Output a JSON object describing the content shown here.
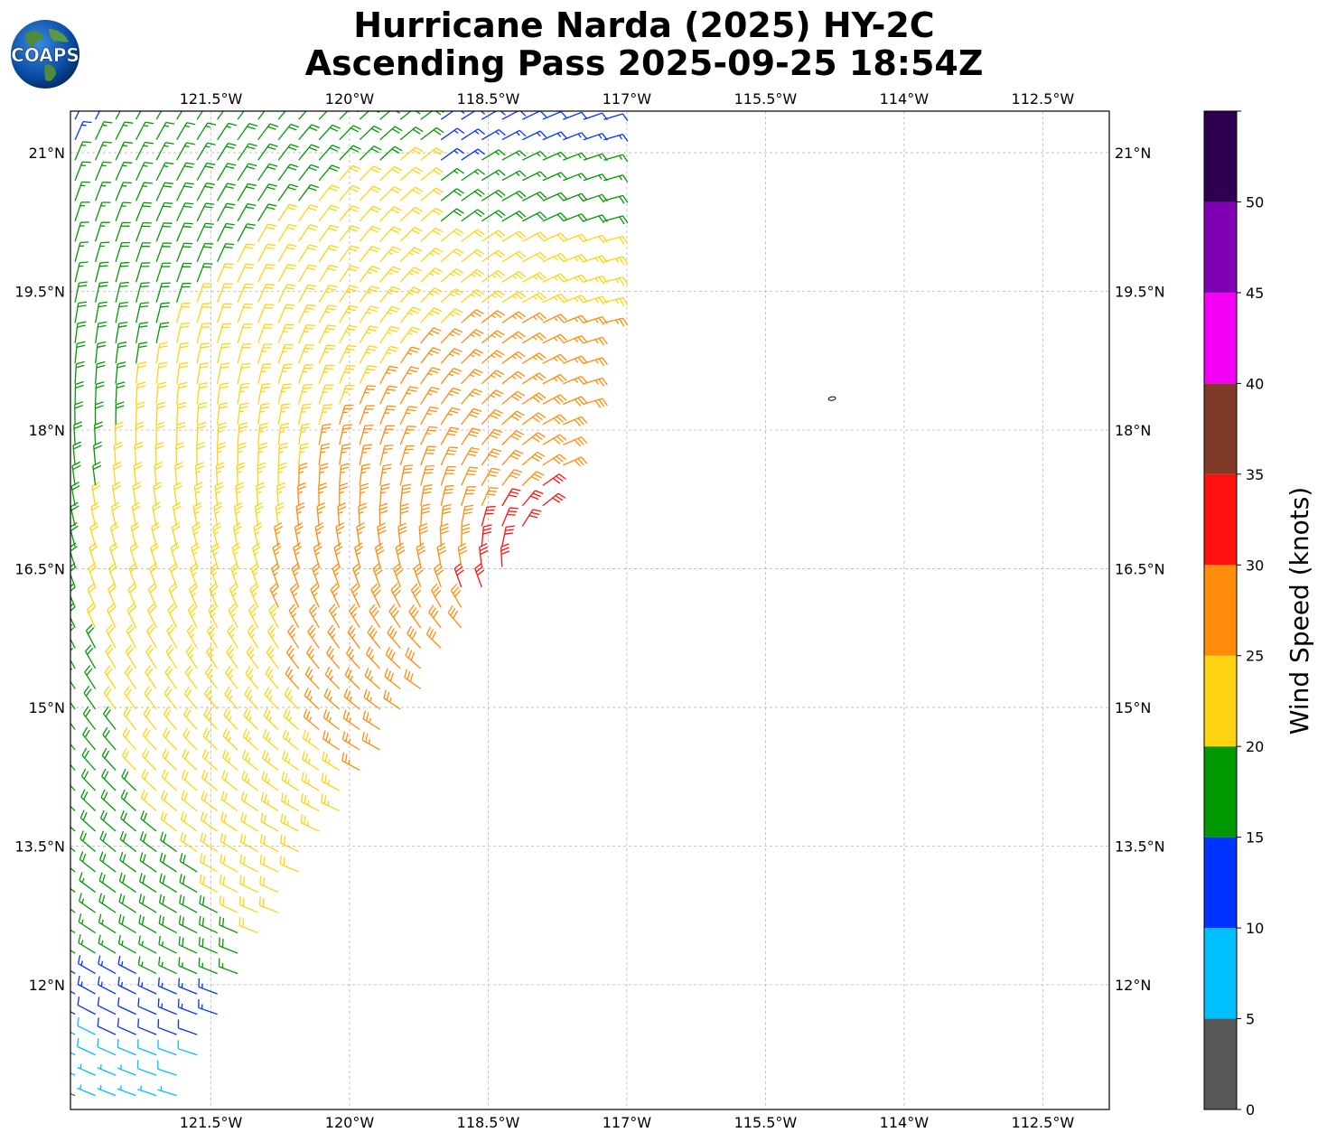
{
  "title": {
    "line1": "Hurricane Narda (2025) HY-2C",
    "line2": "Ascending Pass 2025-09-25 18:54Z"
  },
  "logo": {
    "text": "COAPS",
    "icon": "coaps-globe-icon"
  },
  "map": {
    "extent": {
      "lon_min": -123.02,
      "lon_max": -111.78,
      "lat_min": 10.65,
      "lat_max": 21.45
    },
    "grid": true,
    "x_ticks": [
      {
        "lon": -121.5,
        "label": "121.5°W"
      },
      {
        "lon": -120.0,
        "label": "120°W"
      },
      {
        "lon": -118.5,
        "label": "118.5°W"
      },
      {
        "lon": -117.0,
        "label": "117°W"
      },
      {
        "lon": -115.5,
        "label": "115.5°W"
      },
      {
        "lon": -114.0,
        "label": "114°W"
      },
      {
        "lon": -112.5,
        "label": "112.5°W"
      }
    ],
    "y_ticks": [
      {
        "lat": 21.0,
        "label": "21°N"
      },
      {
        "lat": 19.5,
        "label": "19.5°N"
      },
      {
        "lat": 18.0,
        "label": "18°N"
      },
      {
        "lat": 16.5,
        "label": "16.5°N"
      },
      {
        "lat": 15.0,
        "label": "15°N"
      },
      {
        "lat": 13.5,
        "label": "13.5°N"
      },
      {
        "lat": 12.0,
        "label": "12°N"
      }
    ],
    "island": {
      "lon": -114.78,
      "lat": 18.34
    },
    "swath_edge": [
      {
        "lon": -117.2,
        "lat": 20.7
      },
      {
        "lon": -117.2,
        "lat": 19.3
      },
      {
        "lon": -117.6,
        "lat": 17.6
      },
      {
        "lon": -118.5,
        "lat": 16.2
      },
      {
        "lon": -119.7,
        "lat": 14.4
      },
      {
        "lon": -120.7,
        "lat": 12.9
      },
      {
        "lon": -121.7,
        "lat": 11.0
      }
    ],
    "storm_center": {
      "lon": -117.6,
      "lat": 16.3
    }
  },
  "colorbar": {
    "label": "Wind Speed (knots)",
    "min": 0,
    "max": 55,
    "bins": [
      {
        "from": 0,
        "to": 5,
        "color": "#585858"
      },
      {
        "from": 5,
        "to": 10,
        "color": "#00bfff"
      },
      {
        "from": 10,
        "to": 15,
        "color": "#0033ff"
      },
      {
        "from": 15,
        "to": 20,
        "color": "#009900"
      },
      {
        "from": 20,
        "to": 25,
        "color": "#ffd311"
      },
      {
        "from": 25,
        "to": 30,
        "color": "#ff8c0a"
      },
      {
        "from": 30,
        "to": 35,
        "color": "#ff1010"
      },
      {
        "from": 35,
        "to": 40,
        "color": "#7f3b28"
      },
      {
        "from": 40,
        "to": 45,
        "color": "#f400f4"
      },
      {
        "from": 45,
        "to": 50,
        "color": "#8000b4"
      },
      {
        "from": 50,
        "to": 55,
        "color": "#2e0052"
      }
    ],
    "ticks": [
      "0",
      "5",
      "10",
      "15",
      "20",
      "25",
      "30",
      "35",
      "40",
      "45",
      "50"
    ]
  }
}
